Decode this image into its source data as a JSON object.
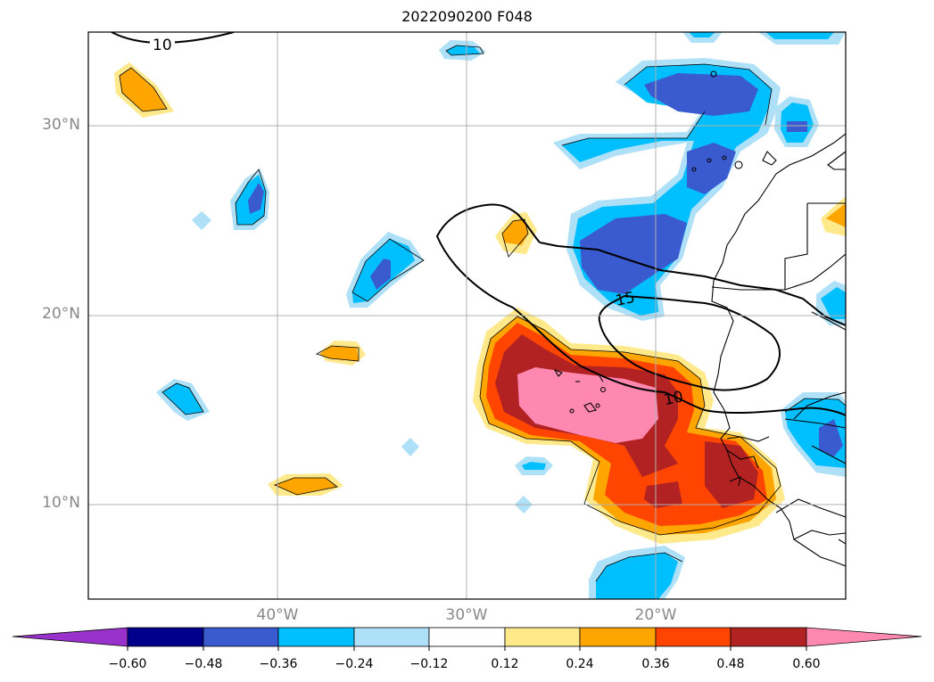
{
  "title": "2022090200 F048",
  "map": {
    "lat_labels": [
      "30°N",
      "20°N",
      "10°N"
    ],
    "lon_labels": [
      "40°W",
      "30°W",
      "20°W"
    ],
    "contour_labels": [
      "10",
      "15",
      "10"
    ]
  },
  "colorbar": {
    "ticks": [
      "−0.60",
      "−0.48",
      "−0.36",
      "−0.24",
      "−0.12",
      "0.12",
      "0.24",
      "0.36",
      "0.48",
      "0.60"
    ],
    "colors": [
      "#9932cc",
      "#00008b",
      "#3a5bd0",
      "#00bfff",
      "#aee0f8",
      "#ffffff",
      "#ffe98a",
      "#ffa500",
      "#ff4500",
      "#b22222",
      "#ff88b0"
    ]
  }
}
